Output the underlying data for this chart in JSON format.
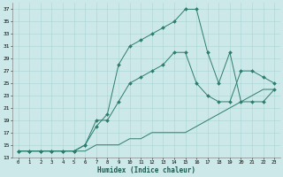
{
  "xlabel": "Humidex (Indice chaleur)",
  "bg_color": "#cce8e8",
  "grid_color": "#aad4d4",
  "line_color": "#2d7d6e",
  "xlim": [
    -0.5,
    23.5
  ],
  "ylim": [
    13,
    38
  ],
  "xticks": [
    0,
    1,
    2,
    3,
    4,
    5,
    6,
    7,
    8,
    9,
    10,
    11,
    12,
    13,
    14,
    15,
    16,
    17,
    18,
    19,
    20,
    21,
    22,
    23
  ],
  "yticks": [
    13,
    15,
    17,
    19,
    21,
    23,
    25,
    27,
    29,
    31,
    33,
    35,
    37
  ],
  "curves": [
    {
      "x": [
        0,
        1,
        2,
        3,
        4,
        5,
        6,
        7,
        8,
        9,
        10,
        11,
        12,
        13,
        14,
        15,
        16,
        17,
        18,
        19,
        20,
        21,
        22,
        23
      ],
      "y": [
        14,
        14,
        14,
        14,
        14,
        14,
        14,
        15,
        15,
        15,
        16,
        16,
        17,
        17,
        17,
        17,
        18,
        19,
        20,
        21,
        22,
        23,
        24,
        24
      ],
      "marker": false,
      "linestyle": "-"
    },
    {
      "x": [
        0,
        1,
        2,
        3,
        4,
        5,
        6,
        7,
        8,
        9,
        10,
        11,
        12,
        13,
        14,
        15,
        16,
        17,
        18,
        19,
        20,
        21,
        22,
        23
      ],
      "y": [
        14,
        14,
        14,
        14,
        14,
        14,
        15,
        19,
        19,
        22,
        25,
        26,
        27,
        28,
        30,
        30,
        25,
        23,
        22,
        22,
        27,
        27,
        26,
        25
      ],
      "marker": true,
      "linestyle": "-"
    },
    {
      "x": [
        0,
        1,
        2,
        3,
        4,
        5,
        6,
        7,
        8,
        9,
        10,
        11,
        12,
        13,
        14,
        15,
        16,
        17,
        18,
        19,
        20,
        21,
        22,
        23
      ],
      "y": [
        14,
        14,
        14,
        14,
        14,
        14,
        15,
        18,
        20,
        28,
        31,
        32,
        33,
        34,
        35,
        37,
        37,
        30,
        25,
        30,
        22,
        22,
        22,
        24
      ],
      "marker": true,
      "linestyle": "-"
    }
  ]
}
